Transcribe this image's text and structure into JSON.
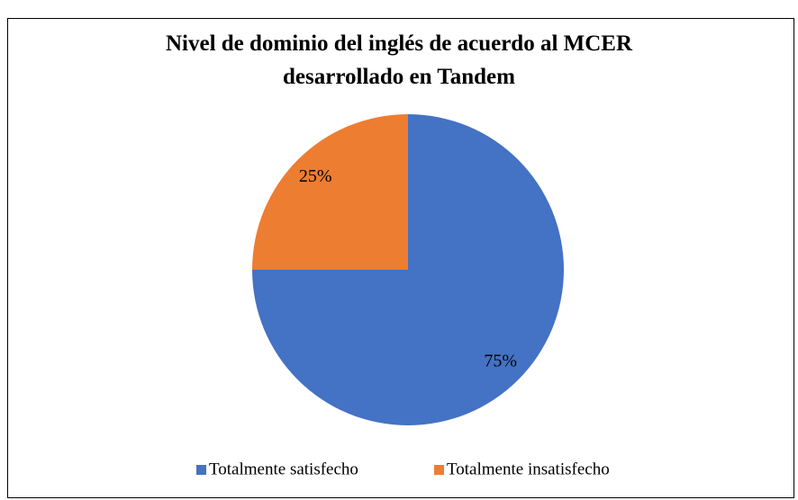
{
  "chart_data": {
    "type": "pie",
    "title": "Nivel de dominio del inglés de acuerdo al MCER desarrollado en Tandem",
    "categories": [
      "Totalmente satisfecho",
      "Totalmente insatisfecho"
    ],
    "values": [
      75,
      25
    ],
    "value_labels": [
      "75%",
      "25%"
    ],
    "colors": [
      "#4472c4",
      "#ed7d31"
    ],
    "legend": "bottom"
  }
}
